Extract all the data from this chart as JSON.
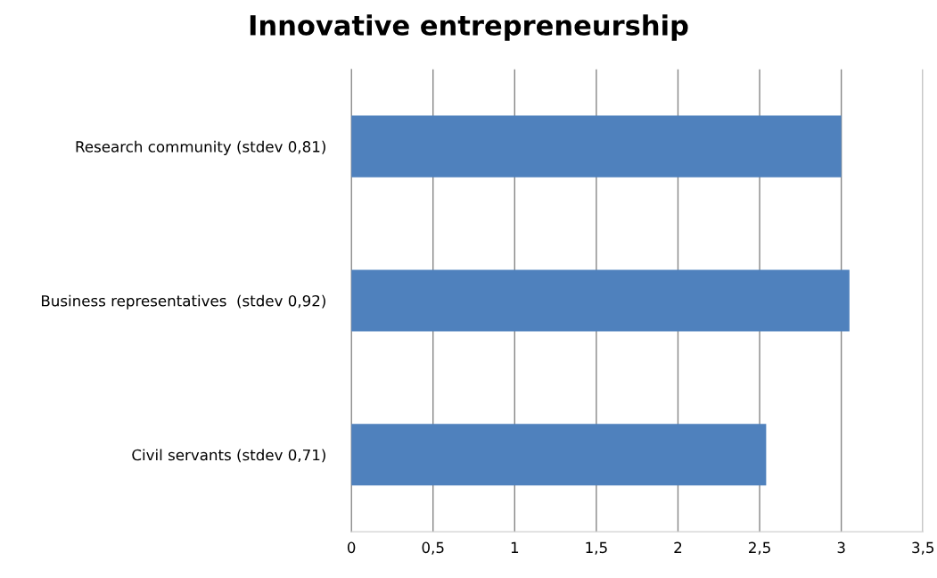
{
  "chart_data": {
    "type": "bar",
    "orientation": "horizontal",
    "title": "Innovative entrepreneurship",
    "categories": [
      "Research community (stdev 0,81)",
      "Business representatives  (stdev 0,92)",
      "Civil servants (stdev 0,71)"
    ],
    "values": [
      3.0,
      3.05,
      2.54
    ],
    "color": "#4f81bd",
    "xlim": [
      0,
      3.5
    ],
    "xticks": [
      0,
      {
        "value": 0.5,
        "label": "0,5"
      },
      1,
      {
        "value": 1.5,
        "label": "1,5"
      },
      2,
      {
        "value": 2.5,
        "label": "2,5"
      },
      3,
      {
        "value": 3.5,
        "label": "3,5"
      }
    ],
    "grid": "x"
  }
}
